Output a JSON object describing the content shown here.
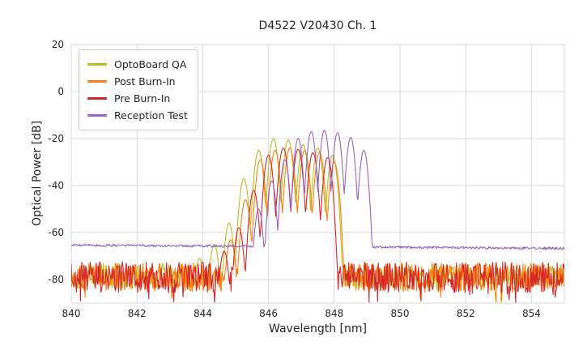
{
  "chart_data": {
    "type": "line",
    "title": "D4522 V20430 Ch. 1",
    "xlabel": "Wavelength [nm]",
    "ylabel": "Optical Power [dB]",
    "xlim": [
      840,
      855
    ],
    "ylim": [
      -90,
      20
    ],
    "xticks": [
      840,
      842,
      844,
      846,
      848,
      850,
      852,
      854
    ],
    "yticks": [
      20,
      0,
      -20,
      -40,
      -60,
      -80
    ],
    "grid": true,
    "grid_color": "#d9d9d9",
    "border_color": "#d4d4d4",
    "legend_position": "upper left",
    "sample_step_nm": 0.02,
    "series": [
      {
        "name": "OptoBoard QA",
        "slug": "optoboard-qa",
        "color": "#bcbd22",
        "seed": 101,
        "noise_floor": -78.5,
        "noise_amp": 5.5,
        "spike_prob": 0.07,
        "spike_extra": 7,
        "floor_slope": 0,
        "curvature": 550,
        "modes": [
          [
            843.9,
            -71
          ],
          [
            844.35,
            -65
          ],
          [
            844.8,
            -56
          ],
          [
            845.25,
            -37
          ],
          [
            845.7,
            -25
          ],
          [
            846.15,
            -20
          ],
          [
            846.6,
            -20.5
          ],
          [
            847.05,
            -22.5
          ],
          [
            847.5,
            -24
          ],
          [
            847.95,
            -27
          ]
        ]
      },
      {
        "name": "Post Burn-In",
        "slug": "post-burn-in",
        "color": "#ff7f0e",
        "seed": 202,
        "noise_floor": -79,
        "noise_amp": 6,
        "spike_prob": 0.08,
        "spike_extra": 8,
        "floor_slope": 0,
        "curvature": 550,
        "modes": [
          [
            844.85,
            -63
          ],
          [
            845.3,
            -46
          ],
          [
            845.75,
            -29
          ],
          [
            846.2,
            -25
          ],
          [
            846.65,
            -24
          ],
          [
            847.1,
            -25
          ],
          [
            847.55,
            -26
          ],
          [
            848.0,
            -30
          ]
        ]
      },
      {
        "name": "Pre Burn-In",
        "slug": "pre-burn-in",
        "color": "#d62728",
        "seed": 303,
        "noise_floor": -79,
        "noise_amp": 6.5,
        "spike_prob": 0.09,
        "spike_extra": 8,
        "floor_slope": 0,
        "curvature": 550,
        "modes": [
          [
            844.65,
            -68
          ],
          [
            845.1,
            -58
          ],
          [
            845.55,
            -42
          ],
          [
            846.0,
            -27
          ],
          [
            846.45,
            -24
          ],
          [
            846.9,
            -24.5
          ],
          [
            847.35,
            -26
          ],
          [
            847.8,
            -28
          ]
        ]
      },
      {
        "name": "Reception Test",
        "slug": "reception-test",
        "color": "#9467bd",
        "seed": 404,
        "noise_floor": -65.4,
        "noise_amp": 0.5,
        "spike_prob": 0,
        "spike_extra": 0,
        "floor_slope": -0.09,
        "curvature": 650,
        "modes": [
          [
            845.7,
            -50
          ],
          [
            846.1,
            -38
          ],
          [
            846.5,
            -29
          ],
          [
            846.9,
            -20
          ],
          [
            847.3,
            -17
          ],
          [
            847.7,
            -16.5
          ],
          [
            848.1,
            -17.5
          ],
          [
            848.5,
            -19.5
          ],
          [
            848.9,
            -25
          ]
        ]
      }
    ]
  }
}
